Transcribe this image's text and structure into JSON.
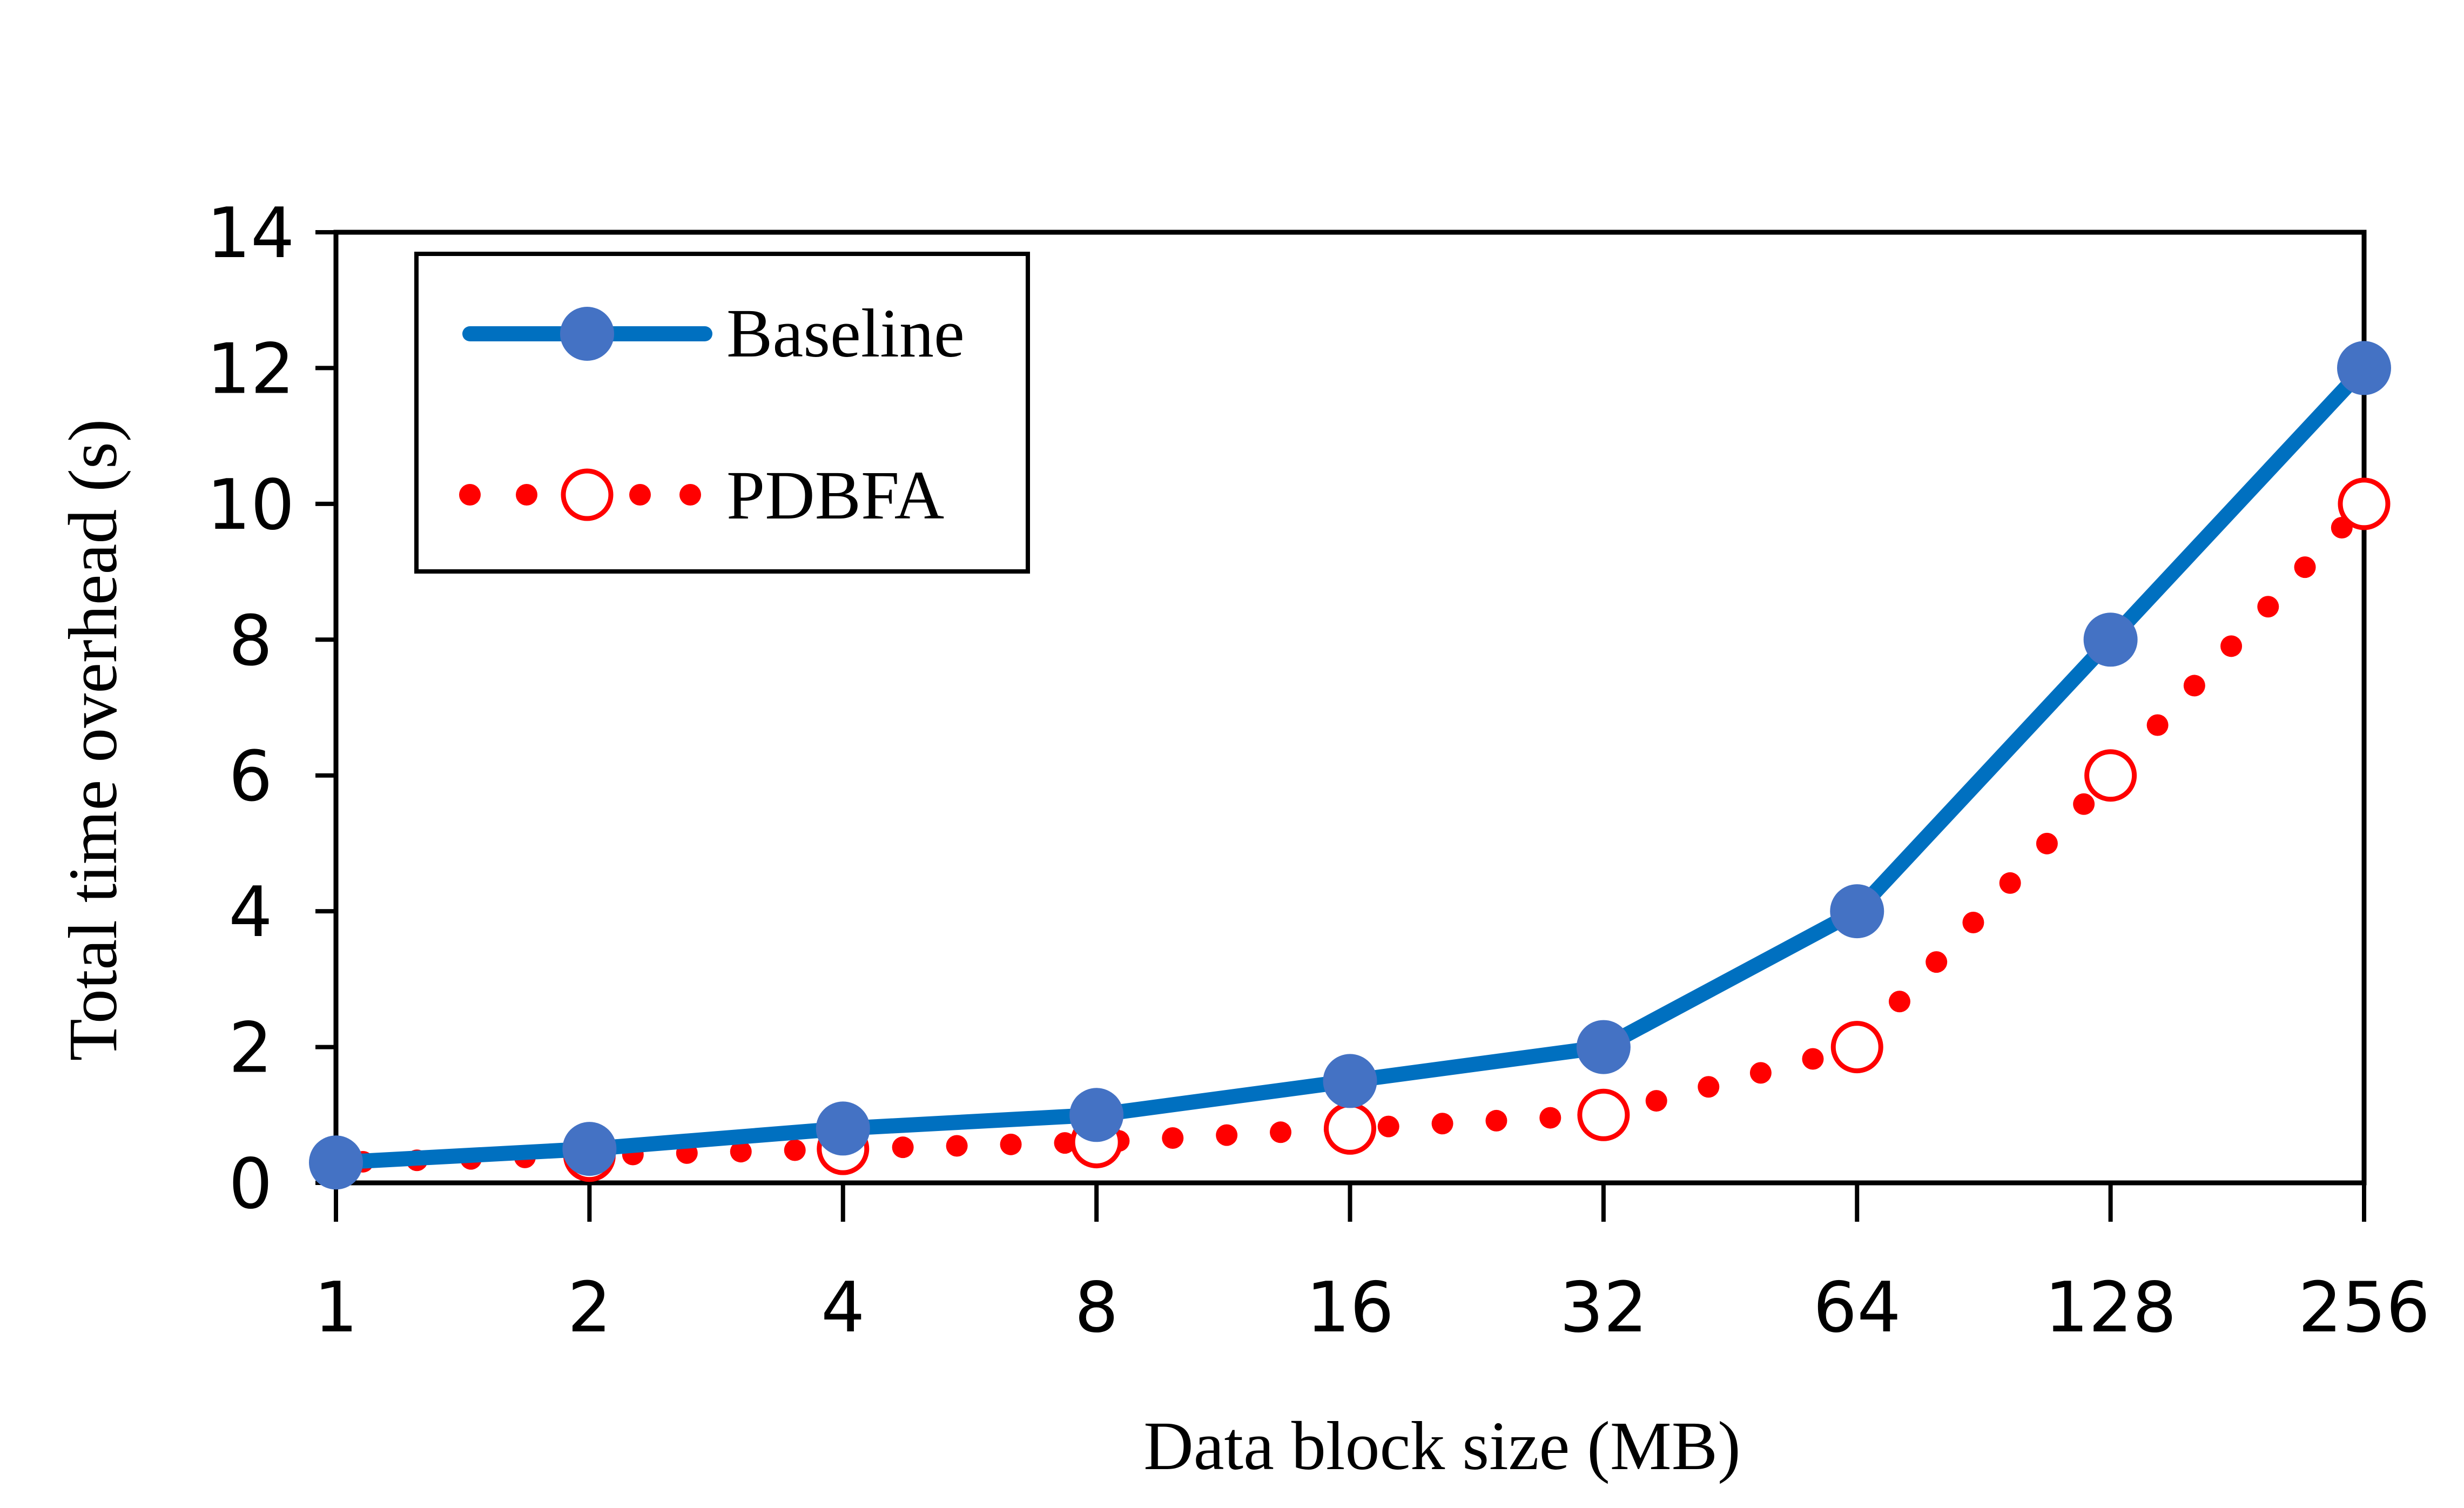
{
  "chart_data": {
    "type": "line",
    "title": "",
    "xlabel": "Data block size (MB)",
    "ylabel": "Total time overhead (s)",
    "categories": [
      "1",
      "2",
      "4",
      "8",
      "16",
      "32",
      "64",
      "128",
      "256"
    ],
    "ylim": [
      0,
      14
    ],
    "yticks": [
      0,
      2,
      4,
      6,
      8,
      10,
      12,
      14
    ],
    "grid": false,
    "legend_position": "top-left",
    "series": [
      {
        "name": "Baseline",
        "values": [
          0.3,
          0.5,
          0.8,
          1.0,
          1.5,
          2.0,
          4.0,
          8.0,
          12.0
        ],
        "line_color": "#0070C0",
        "marker_color": "#4472C4",
        "line_style": "solid",
        "marker": "filled-circle"
      },
      {
        "name": "PDBFA",
        "values": [
          0.3,
          0.4,
          0.5,
          0.6,
          0.8,
          1.0,
          2.0,
          6.0,
          10.0
        ],
        "line_color": "#FF0000",
        "marker_color": "#FF0000",
        "line_style": "dotted",
        "marker": "open-circle"
      }
    ]
  }
}
